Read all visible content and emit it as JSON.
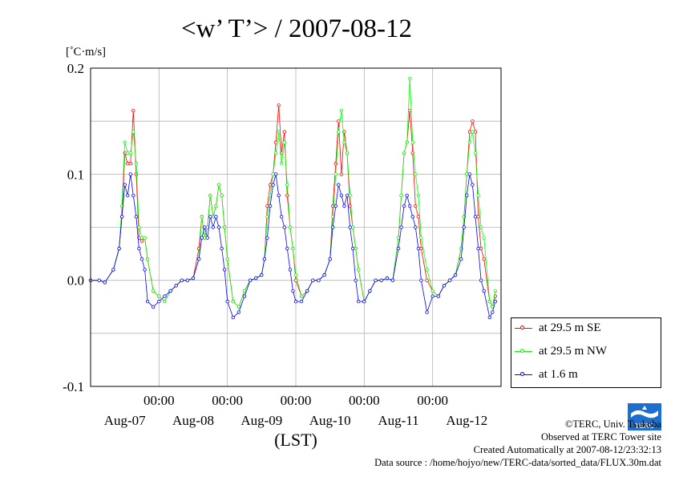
{
  "chart_data": {
    "type": "line",
    "title": "<w’ T’> / 2007-08-12",
    "unit_label": "[˚C·m/s]",
    "xlabel": "(LST)",
    "ylim": [
      -0.1,
      0.2
    ],
    "yticks": [
      "-0.1",
      "0.0",
      "0.1",
      "0.2"
    ],
    "ytick_values": [
      -0.1,
      0.0,
      0.1,
      0.2
    ],
    "xlim_days": [
      0,
      6
    ],
    "time_tick_label": "00:00",
    "date_labels": [
      "Aug-07",
      "Aug-08",
      "Aug-09",
      "Aug-10",
      "Aug-11",
      "Aug-12"
    ],
    "grid": true,
    "legend_position": "right-bottom",
    "peak_hours": [
      4.6,
      14.5,
      38.0,
      62.0,
      86.0,
      110.5,
      135.0,
      140.0
    ],
    "series": [
      {
        "name": "at 29.5 m SE",
        "color": "#ff0000",
        "points": [
          [
            0,
            0.0
          ],
          [
            3,
            0.0
          ],
          [
            5,
            -0.002
          ],
          [
            8,
            0.01
          ],
          [
            10,
            0.03
          ],
          [
            11,
            0.06
          ],
          [
            12,
            0.12
          ],
          [
            13,
            0.11
          ],
          [
            14,
            0.11
          ],
          [
            15,
            0.16
          ],
          [
            16,
            0.1
          ],
          [
            17,
            0.04
          ],
          [
            18,
            0.037
          ],
          [
            19,
            0.04
          ],
          [
            20,
            0.02
          ],
          [
            22,
            -0.01
          ],
          [
            24,
            -0.015
          ],
          [
            26,
            -0.02
          ],
          [
            28,
            -0.01
          ],
          [
            30,
            -0.005
          ],
          [
            32,
            0.0
          ],
          [
            34,
            0.0
          ],
          [
            36,
            0.002
          ],
          [
            38,
            0.03
          ],
          [
            39,
            0.06
          ],
          [
            40,
            0.04
          ],
          [
            41,
            0.05
          ],
          [
            42,
            0.08
          ],
          [
            43,
            0.06
          ],
          [
            44,
            0.07
          ],
          [
            45,
            0.09
          ],
          [
            46,
            0.08
          ],
          [
            47,
            0.05
          ],
          [
            48,
            0.02
          ],
          [
            50,
            -0.02
          ],
          [
            52,
            -0.025
          ],
          [
            54,
            -0.01
          ],
          [
            56,
            0.0
          ],
          [
            58,
            0.002
          ],
          [
            60,
            0.005
          ],
          [
            61,
            0.02
          ],
          [
            62,
            0.07
          ],
          [
            63,
            0.09
          ],
          [
            64,
            0.1
          ],
          [
            65,
            0.13
          ],
          [
            66,
            0.165
          ],
          [
            67,
            0.12
          ],
          [
            68,
            0.14
          ],
          [
            69,
            0.08
          ],
          [
            70,
            0.05
          ],
          [
            71,
            0.03
          ],
          [
            72,
            0.0
          ],
          [
            74,
            -0.015
          ],
          [
            76,
            -0.01
          ],
          [
            78,
            0.0
          ],
          [
            80,
            0.0
          ],
          [
            82,
            0.005
          ],
          [
            84,
            0.02
          ],
          [
            85,
            0.07
          ],
          [
            86,
            0.11
          ],
          [
            87,
            0.15
          ],
          [
            88,
            0.1
          ],
          [
            89,
            0.14
          ],
          [
            90,
            0.12
          ],
          [
            91,
            0.07
          ],
          [
            92,
            0.05
          ],
          [
            93,
            0.03
          ],
          [
            94,
            0.01
          ],
          [
            96,
            -0.02
          ],
          [
            98,
            -0.01
          ],
          [
            100,
            0.0
          ],
          [
            102,
            0.0
          ],
          [
            104,
            0.002
          ],
          [
            106,
            0.0
          ],
          [
            108,
            0.04
          ],
          [
            109,
            0.08
          ],
          [
            110,
            0.12
          ],
          [
            111,
            0.13
          ],
          [
            112,
            0.16
          ],
          [
            113,
            0.12
          ],
          [
            114,
            0.07
          ],
          [
            115,
            0.06
          ],
          [
            116,
            0.03
          ],
          [
            118,
            0.0
          ],
          [
            120,
            -0.01
          ],
          [
            122,
            -0.015
          ],
          [
            124,
            -0.005
          ],
          [
            126,
            0.0
          ],
          [
            128,
            0.005
          ],
          [
            130,
            0.03
          ],
          [
            131,
            0.06
          ],
          [
            132,
            0.1
          ],
          [
            133,
            0.14
          ],
          [
            134,
            0.15
          ],
          [
            135,
            0.14
          ],
          [
            136,
            0.06
          ],
          [
            137,
            0.03
          ],
          [
            138,
            0.02
          ],
          [
            140,
            -0.02
          ],
          [
            141,
            -0.025
          ],
          [
            142,
            -0.015
          ]
        ]
      },
      {
        "name": "at 29.5 m NW",
        "color": "#00ff00",
        "points": [
          [
            0,
            0.0
          ],
          [
            3,
            0.0
          ],
          [
            5,
            -0.002
          ],
          [
            8,
            0.01
          ],
          [
            10,
            0.03
          ],
          [
            11,
            0.07
          ],
          [
            12,
            0.13
          ],
          [
            13,
            0.12
          ],
          [
            14,
            0.12
          ],
          [
            15,
            0.14
          ],
          [
            16,
            0.11
          ],
          [
            17,
            0.05
          ],
          [
            18,
            0.04
          ],
          [
            19,
            0.04
          ],
          [
            20,
            0.02
          ],
          [
            22,
            -0.01
          ],
          [
            24,
            -0.015
          ],
          [
            26,
            -0.02
          ],
          [
            28,
            -0.01
          ],
          [
            30,
            -0.005
          ],
          [
            32,
            0.0
          ],
          [
            34,
            0.0
          ],
          [
            36,
            0.002
          ],
          [
            38,
            0.02
          ],
          [
            39,
            0.06
          ],
          [
            40,
            0.04
          ],
          [
            41,
            0.05
          ],
          [
            42,
            0.08
          ],
          [
            43,
            0.06
          ],
          [
            44,
            0.07
          ],
          [
            45,
            0.09
          ],
          [
            46,
            0.08
          ],
          [
            47,
            0.05
          ],
          [
            48,
            0.02
          ],
          [
            50,
            -0.02
          ],
          [
            52,
            -0.025
          ],
          [
            54,
            -0.01
          ],
          [
            56,
            0.0
          ],
          [
            58,
            0.002
          ],
          [
            60,
            0.005
          ],
          [
            61,
            0.02
          ],
          [
            62,
            0.06
          ],
          [
            63,
            0.08
          ],
          [
            64,
            0.1
          ],
          [
            65,
            0.12
          ],
          [
            66,
            0.14
          ],
          [
            67,
            0.11
          ],
          [
            68,
            0.13
          ],
          [
            69,
            0.09
          ],
          [
            70,
            0.05
          ],
          [
            71,
            0.03
          ],
          [
            72,
            0.005
          ],
          [
            74,
            -0.015
          ],
          [
            76,
            -0.01
          ],
          [
            78,
            0.0
          ],
          [
            80,
            0.0
          ],
          [
            82,
            0.005
          ],
          [
            84,
            0.02
          ],
          [
            85,
            0.06
          ],
          [
            86,
            0.1
          ],
          [
            87,
            0.14
          ],
          [
            88,
            0.16
          ],
          [
            89,
            0.13
          ],
          [
            90,
            0.12
          ],
          [
            91,
            0.08
          ],
          [
            92,
            0.05
          ],
          [
            93,
            0.03
          ],
          [
            94,
            0.01
          ],
          [
            96,
            -0.02
          ],
          [
            98,
            -0.01
          ],
          [
            100,
            0.0
          ],
          [
            102,
            0.0
          ],
          [
            104,
            0.002
          ],
          [
            106,
            0.0
          ],
          [
            108,
            0.04
          ],
          [
            109,
            0.08
          ],
          [
            110,
            0.12
          ],
          [
            111,
            0.13
          ],
          [
            112,
            0.19
          ],
          [
            113,
            0.13
          ],
          [
            114,
            0.1
          ],
          [
            115,
            0.08
          ],
          [
            116,
            0.04
          ],
          [
            118,
            0.01
          ],
          [
            120,
            -0.01
          ],
          [
            122,
            -0.015
          ],
          [
            124,
            -0.005
          ],
          [
            126,
            0.0
          ],
          [
            128,
            0.005
          ],
          [
            130,
            0.03
          ],
          [
            131,
            0.06
          ],
          [
            132,
            0.1
          ],
          [
            133,
            0.13
          ],
          [
            134,
            0.14
          ],
          [
            135,
            0.12
          ],
          [
            136,
            0.08
          ],
          [
            137,
            0.05
          ],
          [
            138,
            0.04
          ],
          [
            140,
            -0.02
          ],
          [
            141,
            -0.025
          ],
          [
            142,
            -0.01
          ]
        ]
      },
      {
        "name": "at 1.6 m",
        "color": "#0000ff",
        "points": [
          [
            0,
            0.0
          ],
          [
            3,
            0.0
          ],
          [
            5,
            -0.002
          ],
          [
            8,
            0.01
          ],
          [
            10,
            0.03
          ],
          [
            11,
            0.06
          ],
          [
            12,
            0.09
          ],
          [
            13,
            0.08
          ],
          [
            14,
            0.1
          ],
          [
            15,
            0.08
          ],
          [
            16,
            0.06
          ],
          [
            17,
            0.03
          ],
          [
            18,
            0.02
          ],
          [
            19,
            0.01
          ],
          [
            20,
            -0.02
          ],
          [
            22,
            -0.025
          ],
          [
            24,
            -0.02
          ],
          [
            26,
            -0.015
          ],
          [
            28,
            -0.01
          ],
          [
            30,
            -0.005
          ],
          [
            32,
            0.0
          ],
          [
            34,
            0.0
          ],
          [
            36,
            0.002
          ],
          [
            38,
            0.02
          ],
          [
            39,
            0.04
          ],
          [
            40,
            0.05
          ],
          [
            41,
            0.04
          ],
          [
            42,
            0.06
          ],
          [
            43,
            0.05
          ],
          [
            44,
            0.06
          ],
          [
            45,
            0.05
          ],
          [
            46,
            0.03
          ],
          [
            47,
            0.01
          ],
          [
            48,
            -0.02
          ],
          [
            50,
            -0.035
          ],
          [
            52,
            -0.03
          ],
          [
            54,
            -0.015
          ],
          [
            56,
            0.0
          ],
          [
            58,
            0.002
          ],
          [
            60,
            0.005
          ],
          [
            61,
            0.02
          ],
          [
            62,
            0.04
          ],
          [
            63,
            0.07
          ],
          [
            64,
            0.09
          ],
          [
            65,
            0.1
          ],
          [
            66,
            0.08
          ],
          [
            67,
            0.06
          ],
          [
            68,
            0.05
          ],
          [
            69,
            0.03
          ],
          [
            70,
            0.01
          ],
          [
            71,
            -0.01
          ],
          [
            72,
            -0.02
          ],
          [
            74,
            -0.02
          ],
          [
            76,
            -0.01
          ],
          [
            78,
            0.0
          ],
          [
            80,
            0.0
          ],
          [
            82,
            0.005
          ],
          [
            84,
            0.02
          ],
          [
            85,
            0.05
          ],
          [
            86,
            0.07
          ],
          [
            87,
            0.09
          ],
          [
            88,
            0.08
          ],
          [
            89,
            0.07
          ],
          [
            90,
            0.08
          ],
          [
            91,
            0.05
          ],
          [
            92,
            0.03
          ],
          [
            93,
            0.0
          ],
          [
            94,
            -0.02
          ],
          [
            96,
            -0.02
          ],
          [
            98,
            -0.01
          ],
          [
            100,
            0.0
          ],
          [
            102,
            0.0
          ],
          [
            104,
            0.002
          ],
          [
            106,
            0.0
          ],
          [
            108,
            0.03
          ],
          [
            109,
            0.05
          ],
          [
            110,
            0.07
          ],
          [
            111,
            0.08
          ],
          [
            112,
            0.07
          ],
          [
            113,
            0.06
          ],
          [
            114,
            0.05
          ],
          [
            115,
            0.03
          ],
          [
            116,
            0.0
          ],
          [
            118,
            -0.03
          ],
          [
            120,
            -0.015
          ],
          [
            122,
            -0.015
          ],
          [
            124,
            -0.005
          ],
          [
            126,
            0.0
          ],
          [
            128,
            0.005
          ],
          [
            130,
            0.02
          ],
          [
            131,
            0.05
          ],
          [
            132,
            0.08
          ],
          [
            133,
            0.1
          ],
          [
            134,
            0.09
          ],
          [
            135,
            0.06
          ],
          [
            136,
            0.03
          ],
          [
            137,
            0.0
          ],
          [
            138,
            -0.01
          ],
          [
            140,
            -0.035
          ],
          [
            141,
            -0.03
          ],
          [
            142,
            -0.02
          ]
        ]
      }
    ]
  },
  "credits": {
    "copyright": "©TERC, Univ. Tsukuba",
    "observed": "Observed at TERC Tower site",
    "created": "Created Automatically at 2007-08-12/23:32:13",
    "source": "Data source : /home/hojyo/new/TERC-data/sorted_data/FLUX.30m.dat"
  },
  "logo_text": "TERC",
  "logo_color": "#1a6fd1"
}
